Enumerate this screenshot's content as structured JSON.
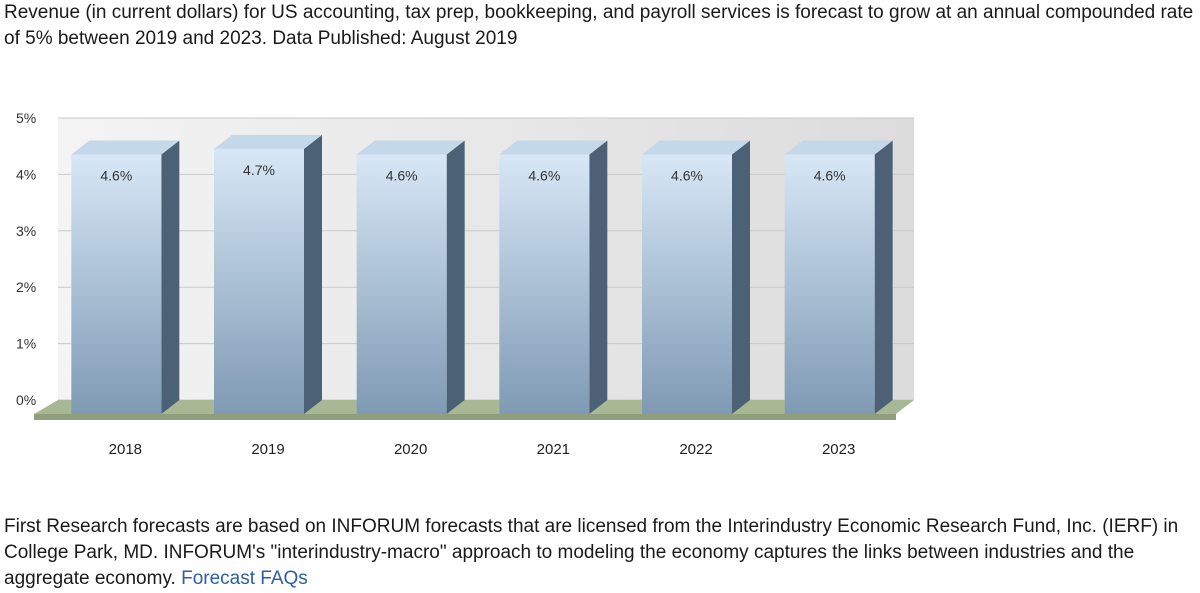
{
  "intro_text": "Revenue (in current dollars) for US accounting, tax prep, bookkeeping, and payroll services is forecast to grow at an annual compounded rate of 5% between 2019 and 2023. Data Published: August 2019",
  "footer": {
    "text": "First Research forecasts are based on INFORUM forecasts that are licensed from the Interindustry Economic Research Fund, Inc. (IERF) in College Park, MD. INFORUM's \"interindustry-macro\" approach to modeling the economy captures the links between industries and the aggregate economy.",
    "link_label": "Forecast FAQs"
  },
  "colors": {
    "bar_front_top": "#d7e7f6",
    "bar_front_bottom": "#7f9ab4",
    "bar_side": "#4c6175",
    "bar_top": "#c5d8ea",
    "floor": "#a9b894",
    "wall": "#e6e6e6",
    "link": "#2a5ea8"
  },
  "chart_data": {
    "type": "bar",
    "categories": [
      "2018",
      "2019",
      "2020",
      "2021",
      "2022",
      "2023"
    ],
    "values": [
      4.6,
      4.7,
      4.6,
      4.6,
      4.6,
      4.6
    ],
    "data_labels": [
      "4.6%",
      "4.7%",
      "4.6%",
      "4.6%",
      "4.6%",
      "4.6%"
    ],
    "yticks": [
      0,
      1,
      2,
      3,
      4,
      5
    ],
    "ytick_labels": [
      "0%",
      "1%",
      "2%",
      "3%",
      "4%",
      "5%"
    ],
    "ylim": [
      0,
      5
    ],
    "grid": true,
    "style": "3d"
  }
}
